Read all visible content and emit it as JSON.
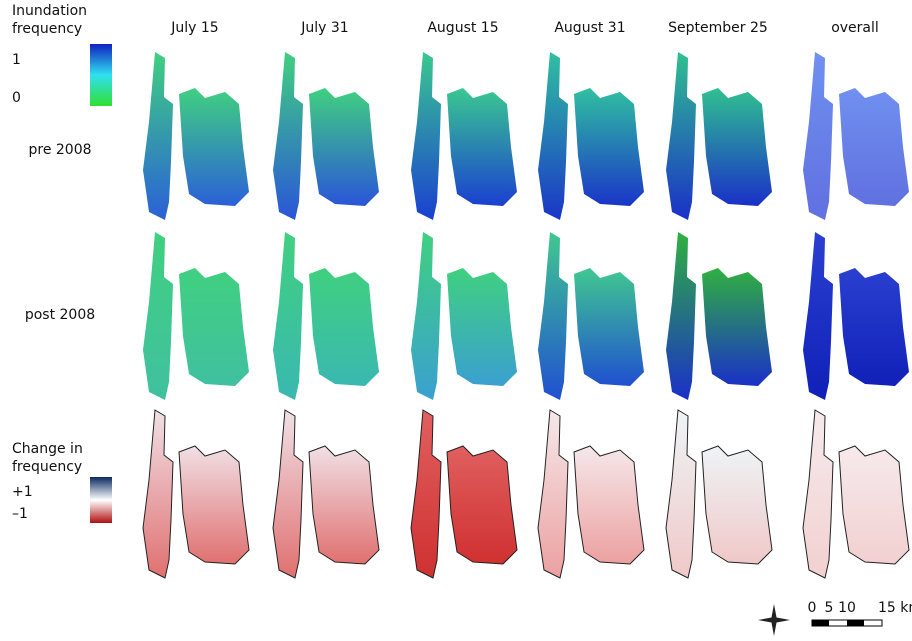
{
  "legend": {
    "inundation": {
      "title": "Inundation frequency",
      "max_label": "1",
      "min_label": "0"
    },
    "change": {
      "title": "Change in frequency",
      "max_label": "+1",
      "min_label": "–1"
    }
  },
  "columns": [
    "July 15",
    "July 31",
    "August 15",
    "August 31",
    "September 25",
    "overall"
  ],
  "rows": [
    "pre 2008",
    "post 2008"
  ],
  "scale_bar": {
    "labels": [
      "0",
      "5",
      "10",
      "15 km"
    ]
  }
}
